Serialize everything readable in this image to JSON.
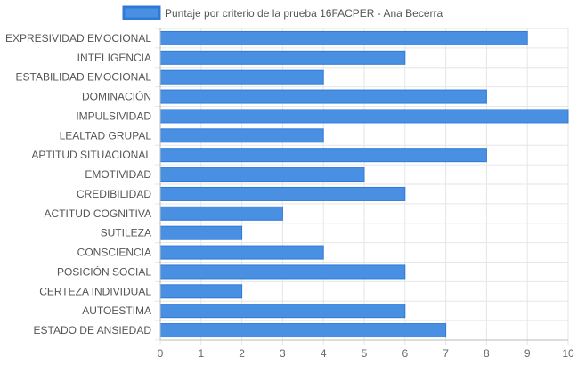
{
  "chart_data": {
    "type": "bar",
    "orientation": "horizontal",
    "categories": [
      "EXPRESIVIDAD EMOCIONAL",
      "INTELIGENCIA",
      "ESTABILIDAD EMOCIONAL",
      "DOMINACIÓN",
      "IMPULSIVIDAD",
      "LEALTAD GRUPAL",
      "APTITUD SITUACIONAL",
      "EMOTIVIDAD",
      "CREDIBILIDAD",
      "ACTITUD COGNITIVA",
      "SUTILEZA",
      "CONSCIENCIA",
      "POSICIÓN SOCIAL",
      "CERTEZA INDIVIDUAL",
      "AUTOESTIMA",
      "ESTADO DE ANSIEDAD"
    ],
    "series": [
      {
        "name": "Puntaje por criterio de la prueba 16FACPER - Ana Becerra",
        "values": [
          9,
          6,
          4,
          8,
          10,
          4,
          8,
          5,
          6,
          3,
          2,
          4,
          6,
          2,
          6,
          7
        ],
        "color": "#4a90e2",
        "border_color": "#2f7ad6"
      }
    ],
    "xlim": [
      0,
      10
    ],
    "x_ticks": [
      "0",
      "1",
      "2",
      "3",
      "4",
      "5",
      "6",
      "7",
      "8",
      "9",
      "10"
    ],
    "grid": true,
    "legend_position": "top",
    "grid_color": "#e6e6e6",
    "axis_color": "#bbbbbb"
  }
}
